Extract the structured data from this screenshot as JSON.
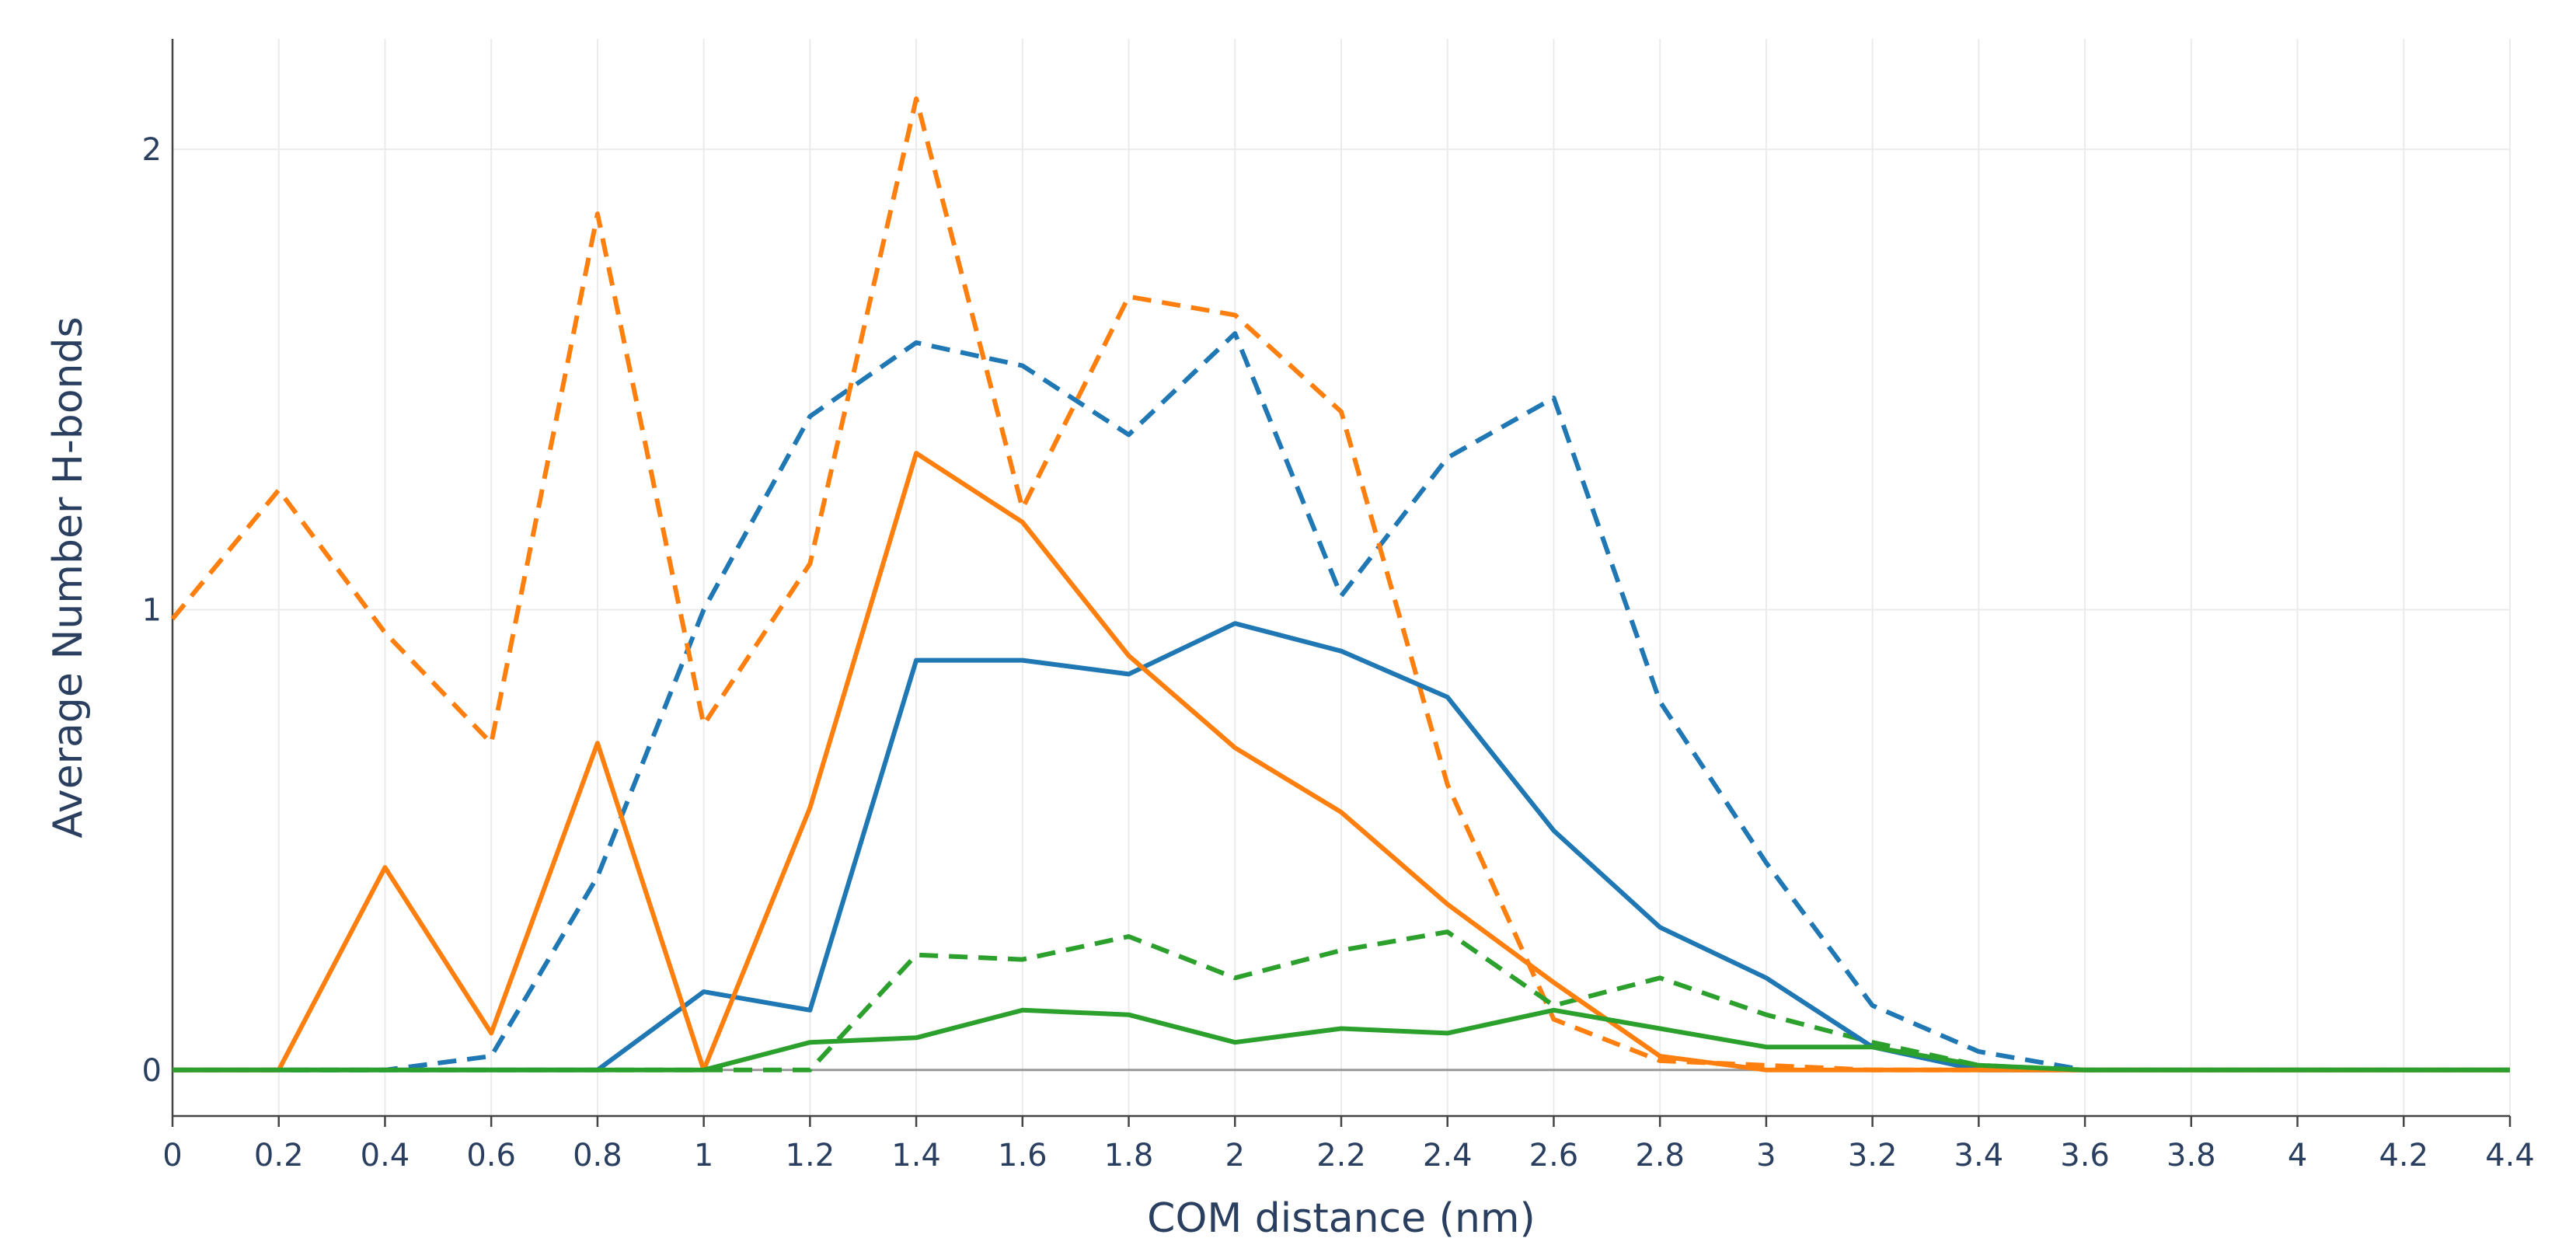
{
  "chart_data": {
    "type": "line",
    "title": "",
    "xlabel": "COM distance (nm)",
    "ylabel": "Average Number H-bonds",
    "xlim": [
      0,
      4.4
    ],
    "ylim": [
      -0.1,
      2.24
    ],
    "grid": true,
    "x_ticks": [
      "0",
      "0.2",
      "0.4",
      "0.6",
      "0.8",
      "1",
      "1.2",
      "1.4",
      "1.6",
      "1.8",
      "2",
      "2.2",
      "2.4",
      "2.6",
      "2.8",
      "3",
      "3.2",
      "3.4",
      "3.6",
      "3.8",
      "4",
      "4.2",
      "4.4"
    ],
    "y_ticks": [
      "0",
      "1",
      "2"
    ],
    "x": [
      0,
      0.2,
      0.4,
      0.6,
      0.8,
      1.0,
      1.2,
      1.4,
      1.6,
      1.8,
      2.0,
      2.2,
      2.4,
      2.6,
      2.8,
      3.0,
      3.2,
      3.4,
      3.6,
      3.8,
      4.0,
      4.2,
      4.4
    ],
    "series": [
      {
        "name": "blue-dashed",
        "color": "#1f77b4",
        "dash": "dashed",
        "values": [
          0,
          0,
          0,
          0.03,
          0.42,
          1.0,
          1.42,
          1.58,
          1.53,
          1.38,
          1.6,
          1.03,
          1.33,
          1.46,
          0.8,
          0.45,
          0.14,
          0.04,
          0,
          0,
          0,
          0,
          0
        ]
      },
      {
        "name": "orange-dashed",
        "color": "#ff7f0e",
        "dash": "dashed",
        "values": [
          0.98,
          1.26,
          0.95,
          0.71,
          1.86,
          0.75,
          1.1,
          2.11,
          1.22,
          1.68,
          1.64,
          1.43,
          0.62,
          0.11,
          0.02,
          0.01,
          0,
          0,
          0,
          0,
          0,
          0,
          0
        ]
      },
      {
        "name": "green-dashed",
        "color": "#2ca02c",
        "dash": "dashed",
        "values": [
          0,
          0,
          0,
          0,
          0,
          0,
          0,
          0.25,
          0.24,
          0.29,
          0.2,
          0.26,
          0.3,
          0.14,
          0.2,
          0.12,
          0.06,
          0.01,
          0,
          0,
          0,
          0,
          0
        ]
      },
      {
        "name": "blue-solid",
        "color": "#1f77b4",
        "dash": "solid",
        "values": [
          0,
          0,
          0,
          0,
          0,
          0.17,
          0.13,
          0.89,
          0.89,
          0.86,
          0.97,
          0.91,
          0.81,
          0.52,
          0.31,
          0.2,
          0.05,
          0,
          0,
          0,
          0,
          0,
          0
        ]
      },
      {
        "name": "orange-solid",
        "color": "#ff7f0e",
        "dash": "solid",
        "values": [
          0,
          0,
          0.44,
          0.08,
          0.71,
          0,
          0.57,
          1.34,
          1.19,
          0.9,
          0.7,
          0.56,
          0.36,
          0.19,
          0.03,
          0,
          0,
          0,
          0,
          0,
          0,
          0,
          0
        ]
      },
      {
        "name": "green-solid",
        "color": "#2ca02c",
        "dash": "solid",
        "values": [
          0,
          0,
          0,
          0,
          0,
          0,
          0.06,
          0.07,
          0.13,
          0.12,
          0.06,
          0.09,
          0.08,
          0.13,
          0.09,
          0.05,
          0.05,
          0.01,
          0,
          0,
          0,
          0,
          0
        ]
      }
    ]
  }
}
